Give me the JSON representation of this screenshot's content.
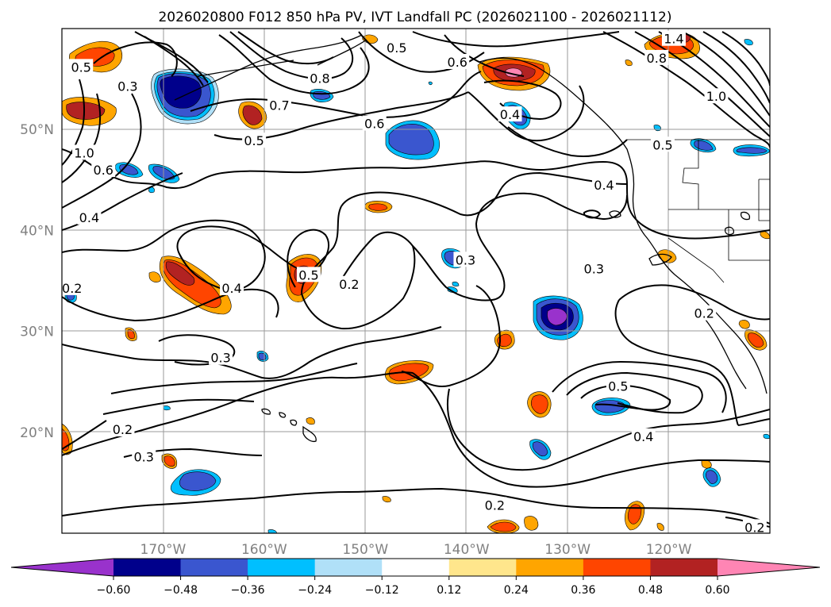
{
  "chart_data": {
    "type": "contour_map",
    "title": "2026020800 F012 850 hPa PV, IVT Landfall PC (2026021100 - 2026021112)",
    "map": {
      "lon_range": [
        180,
        110
      ],
      "lat_range": [
        10,
        60
      ],
      "meridian_labels": [
        "170°W",
        "160°W",
        "150°W",
        "140°W",
        "130°W",
        "120°W"
      ],
      "meridian_values": [
        -170,
        -160,
        -150,
        -140,
        -130,
        -120
      ],
      "parallel_labels": [
        "20°N",
        "30°N",
        "40°N",
        "50°N"
      ],
      "parallel_values": [
        20,
        30,
        40,
        50
      ]
    },
    "colorbar": {
      "orientation": "horizontal",
      "extend": "both",
      "boundaries": [
        -0.6,
        -0.48,
        -0.36,
        -0.24,
        -0.12,
        0.12,
        0.24,
        0.36,
        0.48,
        0.6
      ],
      "tick_labels": [
        "−0.60",
        "−0.48",
        "−0.36",
        "−0.24",
        "−0.12",
        "0.12",
        "0.24",
        "0.36",
        "0.48",
        "0.60"
      ],
      "colors": [
        "#9932cc",
        "#00008b",
        "#3a56cf",
        "#00bfff",
        "#b0e0f8",
        "#ffffff",
        "#ffe68c",
        "#ffa500",
        "#ff4500",
        "#b22222",
        "#ff85b4"
      ]
    },
    "contour_labels": [
      {
        "text": "0.5",
        "lon": -146.9,
        "lat": 58.1
      },
      {
        "text": "0.6",
        "lon": -140.9,
        "lat": 56.7
      },
      {
        "text": "0.7",
        "lon": -158.5,
        "lat": 52.4
      },
      {
        "text": "0.8",
        "lon": -154.5,
        "lat": 55.1
      },
      {
        "text": "0.3",
        "lon": -173.5,
        "lat": 54.3
      },
      {
        "text": "0.5",
        "lon": -178.1,
        "lat": 56.2
      },
      {
        "text": "1.0",
        "lon": -177.8,
        "lat": 47.7
      },
      {
        "text": "0.6",
        "lon": -175.9,
        "lat": 46.0
      },
      {
        "text": "0.6",
        "lon": -149.1,
        "lat": 50.6
      },
      {
        "text": "0.4",
        "lon": -135.7,
        "lat": 51.5
      },
      {
        "text": "0.5",
        "lon": -161.0,
        "lat": 48.9
      },
      {
        "text": "0.5",
        "lon": -120.6,
        "lat": 48.5
      },
      {
        "text": "0.8",
        "lon": -121.2,
        "lat": 57.1
      },
      {
        "text": "1.0",
        "lon": -115.3,
        "lat": 53.3
      },
      {
        "text": "1.4",
        "lon": -119.5,
        "lat": 59.0
      },
      {
        "text": "0.4",
        "lon": -126.4,
        "lat": 44.5
      },
      {
        "text": "0.4",
        "lon": -177.3,
        "lat": 41.3
      },
      {
        "text": "0.3",
        "lon": -140.1,
        "lat": 37.1
      },
      {
        "text": "0.3",
        "lon": -127.4,
        "lat": 36.2
      },
      {
        "text": "0.5",
        "lon": -155.6,
        "lat": 35.6
      },
      {
        "text": "0.2",
        "lon": -151.6,
        "lat": 34.7
      },
      {
        "text": "0.4",
        "lon": -163.2,
        "lat": 34.3
      },
      {
        "text": "0.2",
        "lon": -179.0,
        "lat": 34.3
      },
      {
        "text": "0.2",
        "lon": -116.5,
        "lat": 31.8
      },
      {
        "text": "0.3",
        "lon": -164.3,
        "lat": 27.4
      },
      {
        "text": "0.5",
        "lon": -125.0,
        "lat": 24.6
      },
      {
        "text": "0.4",
        "lon": -122.5,
        "lat": 19.6
      },
      {
        "text": "0.2",
        "lon": -174.0,
        "lat": 20.3
      },
      {
        "text": "0.3",
        "lon": -171.9,
        "lat": 17.6
      },
      {
        "text": "0.2",
        "lon": -137.2,
        "lat": 12.8
      },
      {
        "text": "0.2",
        "lon": -111.5,
        "lat": 10.6
      }
    ]
  }
}
